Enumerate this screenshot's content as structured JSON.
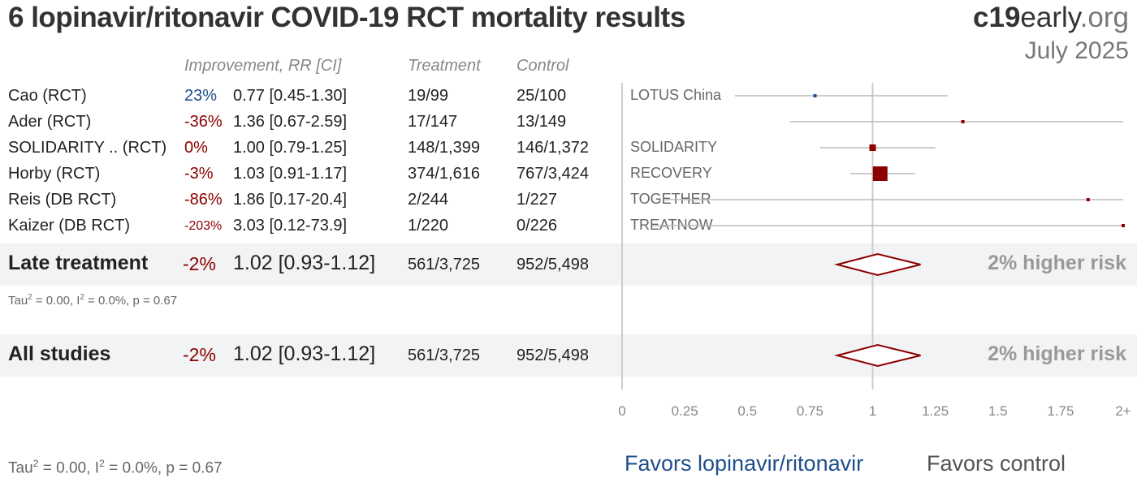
{
  "header": {
    "title": "6 lopinavir/ritonavir COVID-19 RCT mortality results",
    "brand_bold": "c19",
    "brand_rest": "early",
    "brand_tld": ".org",
    "date": "July 2025"
  },
  "columns": {
    "improvement": "Improvement, RR [CI]",
    "treatment": "Treatment",
    "control": "Control"
  },
  "studies": [
    {
      "name": "Cao (RCT)",
      "improvement": "23%",
      "rr_text": "0.77 [0.45-1.30]",
      "treatment": "19/99",
      "control": "25/100",
      "label": "LOTUS China",
      "rr": 0.77,
      "lo": 0.45,
      "hi": 1.3,
      "favors": "treatment",
      "weight": 1
    },
    {
      "name": "Ader (RCT)",
      "improvement": "-36%",
      "rr_text": "1.36 [0.67-2.59]",
      "treatment": "17/147",
      "control": "13/149",
      "label": "",
      "rr": 1.36,
      "lo": 0.67,
      "hi": 2.59,
      "favors": "control",
      "weight": 1
    },
    {
      "name": "SOLIDARITY .. (RCT)",
      "improvement": "0%",
      "rr_text": "1.00 [0.79-1.25]",
      "treatment": "148/1,399",
      "control": "146/1,372",
      "label": "SOLIDARITY",
      "rr": 1.0,
      "lo": 0.79,
      "hi": 1.25,
      "favors": "control",
      "weight": 2
    },
    {
      "name": "Horby (RCT)",
      "improvement": "-3%",
      "rr_text": "1.03 [0.91-1.17]",
      "treatment": "374/1,616",
      "control": "767/3,424",
      "label": "RECOVERY",
      "rr": 1.03,
      "lo": 0.91,
      "hi": 1.17,
      "favors": "control",
      "weight": 5
    },
    {
      "name": "Reis (DB RCT)",
      "improvement": "-86%",
      "rr_text": "1.86 [0.17-20.4]",
      "treatment": "2/244",
      "control": "1/227",
      "label": "TOGETHER",
      "rr": 1.86,
      "lo": 0.17,
      "hi": 20.4,
      "favors": "control",
      "weight": 1
    },
    {
      "name": "Kaizer (DB RCT)",
      "improvement": "-203%",
      "rr_text": "3.03 [0.12-73.9]",
      "treatment": "1/220",
      "control": "0/226",
      "label": "TREATNOW",
      "rr": 3.03,
      "lo": 0.12,
      "hi": 73.9,
      "favors": "control",
      "weight": 1
    }
  ],
  "summaries": [
    {
      "name": "Late treatment",
      "improvement": "-2%",
      "rr_text": "1.02 [0.93-1.12]",
      "treatment": "561/3,725",
      "control": "952/5,498",
      "result": "2% higher risk",
      "rr": 1.02,
      "lo": 0.93,
      "hi": 1.12
    },
    {
      "name": "All studies",
      "improvement": "-2%",
      "rr_text": "1.02 [0.93-1.12]",
      "treatment": "561/3,725",
      "control": "952/5,498",
      "result": "2% higher risk",
      "rr": 1.02,
      "lo": 0.93,
      "hi": 1.12
    }
  ],
  "stats": {
    "late_prefix": "Tau",
    "late_rest": " = 0.00, I",
    "late_tail": " = 0.0%, p = 0.67",
    "all_prefix": "Tau",
    "all_rest": " = 0.00, I",
    "all_tail": " = 0.0%, p = 0.67",
    "sup": "2"
  },
  "chart_data": {
    "type": "forest",
    "xlim": [
      0,
      2
    ],
    "ticks": [
      "0",
      "0.25",
      "0.5",
      "0.75",
      "1",
      "1.25",
      "1.5",
      "1.75",
      "2+"
    ],
    "tick_values": [
      0,
      0.25,
      0.5,
      0.75,
      1,
      1.25,
      1.5,
      1.75,
      2
    ],
    "reference_line": 1,
    "xlabel_left": "Favors lopinavir/ritonavir",
    "xlabel_right": "Favors control",
    "colors": {
      "favor_treatment": "#1f4e8c",
      "favor_control": "#8b0000",
      "ci": "#bbbbbb",
      "axis": "#cccccc"
    }
  }
}
